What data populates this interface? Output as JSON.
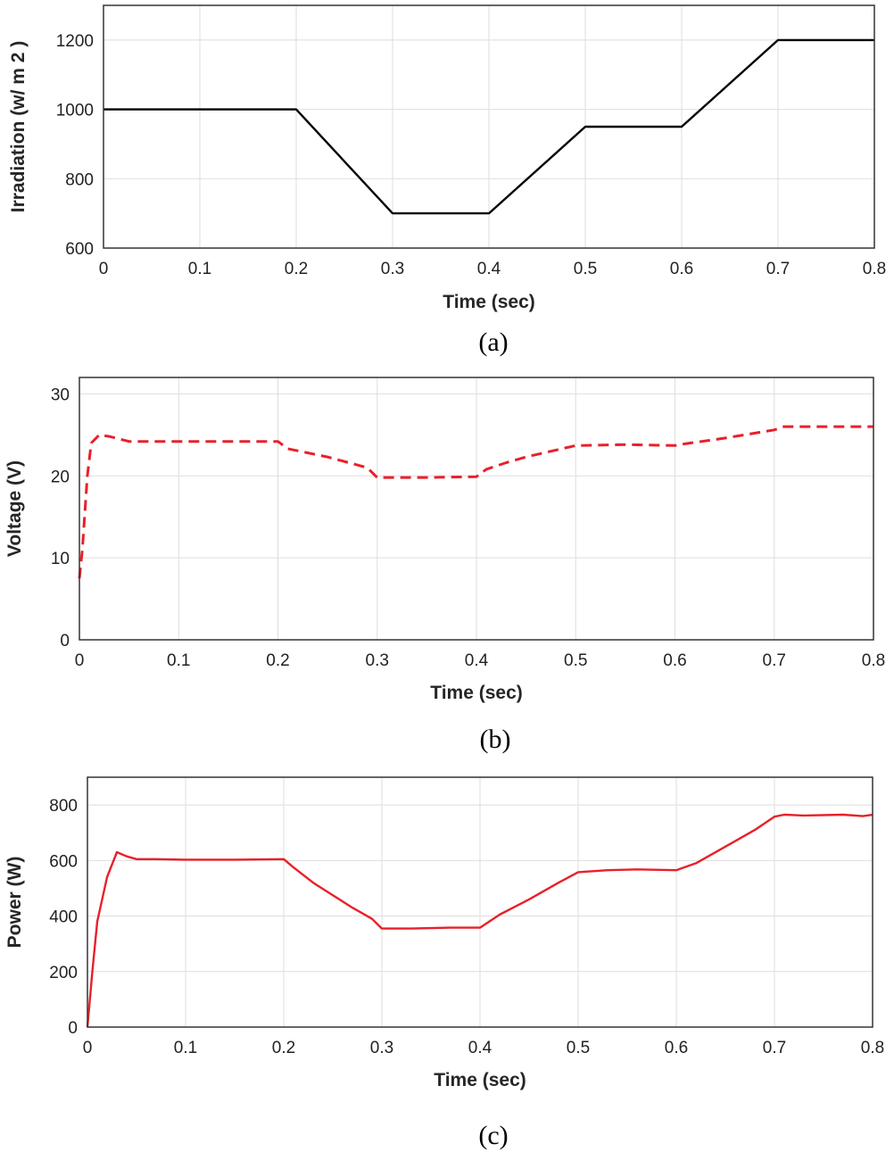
{
  "chart_data": [
    {
      "id": "a",
      "type": "line",
      "caption": "(a)",
      "title": "",
      "xlabel": "Time (sec)",
      "ylabel": "Irradiation (w/ m 2 )",
      "xlim": [
        0,
        0.8
      ],
      "ylim": [
        600,
        1300
      ],
      "xticks": [
        0,
        0.1,
        0.2,
        0.3,
        0.4,
        0.5,
        0.6,
        0.7,
        0.8
      ],
      "xtick_labels": [
        "0",
        "0.1",
        "0.2",
        "0.3",
        "0.4",
        "0.5",
        "0.6",
        "0.7",
        "0.8"
      ],
      "yticks": [
        600,
        800,
        1000,
        1200
      ],
      "ytick_labels": [
        "600",
        "800",
        "1000",
        "1200"
      ],
      "grid": true,
      "series": [
        {
          "name": "Irradiation",
          "color": "#000000",
          "dash": "solid",
          "x": [
            0,
            0.2,
            0.3,
            0.4,
            0.5,
            0.6,
            0.7,
            0.8
          ],
          "y": [
            1000,
            1000,
            700,
            700,
            950,
            950,
            1200,
            1200
          ]
        }
      ]
    },
    {
      "id": "b",
      "type": "line",
      "caption": "(b)",
      "title": "",
      "xlabel": "Time (sec)",
      "ylabel": "Voltage (V)",
      "xlim": [
        0,
        0.8
      ],
      "ylim": [
        0,
        32
      ],
      "xticks": [
        0,
        0.1,
        0.2,
        0.3,
        0.4,
        0.5,
        0.6,
        0.7,
        0.8
      ],
      "xtick_labels": [
        "0",
        "0.1",
        "0.2",
        "0.3",
        "0.4",
        "0.5",
        "0.6",
        "0.7",
        "0.8"
      ],
      "yticks": [
        0,
        10,
        20,
        30
      ],
      "ytick_labels": [
        "0",
        "10",
        "20",
        "30"
      ],
      "grid": true,
      "series": [
        {
          "name": "Voltage",
          "color": "#e8202a",
          "dash": "dashed",
          "x": [
            0,
            0.003,
            0.008,
            0.012,
            0.02,
            0.03,
            0.04,
            0.05,
            0.1,
            0.15,
            0.2,
            0.21,
            0.25,
            0.29,
            0.3,
            0.35,
            0.4,
            0.41,
            0.43,
            0.45,
            0.5,
            0.55,
            0.6,
            0.61,
            0.65,
            0.7,
            0.71,
            0.75,
            0.8
          ],
          "y": [
            7.5,
            11,
            20,
            24,
            25,
            24.8,
            24.5,
            24.2,
            24.2,
            24.2,
            24.2,
            23.3,
            22.3,
            21,
            19.8,
            19.8,
            19.9,
            20.8,
            21.6,
            22.3,
            23.7,
            23.8,
            23.7,
            23.9,
            24.6,
            25.6,
            26,
            26,
            26
          ]
        }
      ]
    },
    {
      "id": "c",
      "type": "line",
      "caption": "(c)",
      "title": "",
      "xlabel": "Time (sec)",
      "ylabel": "Power (W)",
      "xlim": [
        0,
        0.8
      ],
      "ylim": [
        0,
        900
      ],
      "xticks": [
        0,
        0.1,
        0.2,
        0.3,
        0.4,
        0.5,
        0.6,
        0.7,
        0.8
      ],
      "xtick_labels": [
        "0",
        "0.1",
        "0.2",
        "0.3",
        "0.4",
        "0.5",
        "0.6",
        "0.7",
        "0.8"
      ],
      "yticks": [
        0,
        200,
        400,
        600,
        800
      ],
      "ytick_labels": [
        "0",
        "200",
        "400",
        "600",
        "800"
      ],
      "grid": true,
      "series": [
        {
          "name": "Power",
          "color": "#e8202a",
          "dash": "solid",
          "x": [
            0,
            0.005,
            0.01,
            0.02,
            0.03,
            0.04,
            0.05,
            0.07,
            0.1,
            0.15,
            0.2,
            0.21,
            0.23,
            0.25,
            0.27,
            0.29,
            0.3,
            0.33,
            0.37,
            0.4,
            0.42,
            0.45,
            0.48,
            0.5,
            0.53,
            0.56,
            0.6,
            0.62,
            0.65,
            0.68,
            0.7,
            0.71,
            0.73,
            0.77,
            0.79,
            0.8
          ],
          "y": [
            0,
            200,
            380,
            540,
            630,
            615,
            605,
            605,
            603,
            603,
            605,
            575,
            520,
            475,
            430,
            390,
            355,
            355,
            358,
            358,
            405,
            460,
            520,
            558,
            565,
            568,
            565,
            590,
            650,
            710,
            758,
            765,
            762,
            765,
            760,
            765
          ]
        }
      ]
    }
  ]
}
